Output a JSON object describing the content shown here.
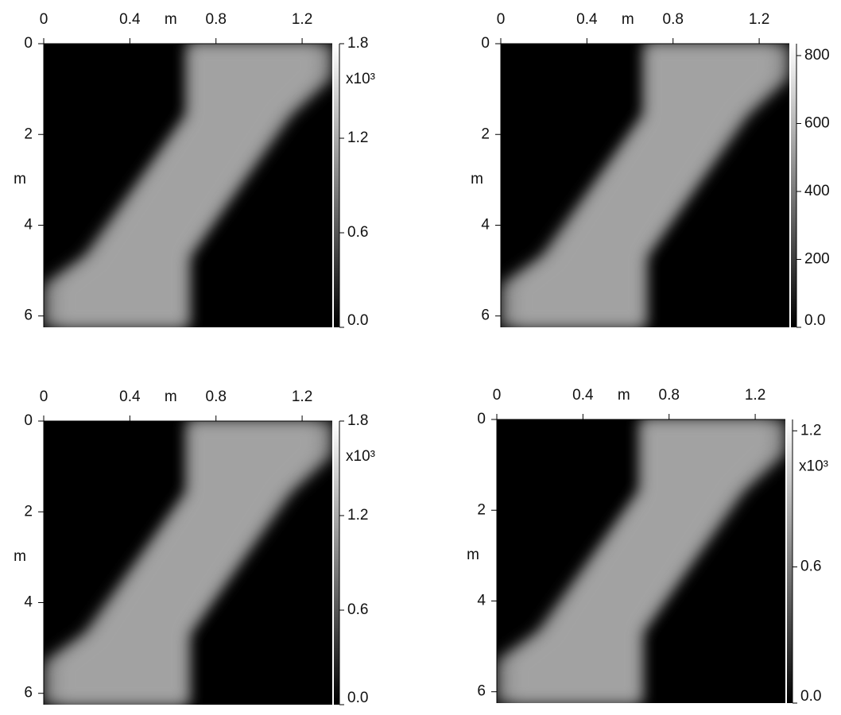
{
  "chart_data": [
    {
      "type": "heatmap",
      "x_label": "m",
      "y_label": "m",
      "xlim": [
        0,
        1.34
      ],
      "ylim": [
        0,
        6.25
      ],
      "xticks": [
        0,
        0.4,
        0.8,
        1.2
      ],
      "yticks": [
        0,
        2,
        4,
        6
      ],
      "colorbar": {
        "clim": [
          0,
          1.8
        ],
        "ticks": [
          {
            "value": 0,
            "label": "0.0"
          },
          0.6,
          1.2,
          1.8
        ],
        "label": "x10³"
      }
    },
    {
      "type": "heatmap",
      "x_label": "m",
      "y_label": "m",
      "xlim": [
        0,
        1.34
      ],
      "ylim": [
        0,
        6.25
      ],
      "xticks": [
        0,
        0.4,
        0.8,
        1.2
      ],
      "yticks": [
        0,
        2,
        4,
        6
      ],
      "colorbar": {
        "clim": [
          0,
          835
        ],
        "ticks": [
          {
            "value": 0,
            "label": "0.0"
          },
          200,
          400,
          600,
          800
        ]
      }
    },
    {
      "type": "heatmap",
      "x_label": "m",
      "y_label": "m",
      "xlim": [
        0,
        1.34
      ],
      "ylim": [
        0,
        6.25
      ],
      "xticks": [
        0,
        0.4,
        0.8,
        1.2
      ],
      "yticks": [
        0,
        2,
        4,
        6
      ],
      "colorbar": {
        "clim": [
          0,
          1.8
        ],
        "ticks": [
          {
            "value": 0,
            "label": "0.0"
          },
          0.6,
          1.2,
          1.8
        ],
        "label": "x10³"
      }
    },
    {
      "type": "heatmap",
      "x_label": "m",
      "y_label": "m",
      "xlim": [
        0,
        1.34
      ],
      "ylim": [
        0,
        6.25
      ],
      "xticks": [
        0,
        0.4,
        0.8,
        1.2
      ],
      "yticks": [
        0,
        2,
        4,
        6
      ],
      "colorbar": {
        "clim": [
          0,
          1.25
        ],
        "ticks": [
          {
            "value": 0,
            "label": "0.0"
          },
          0.6,
          1.2
        ],
        "label": "x10³"
      }
    }
  ]
}
